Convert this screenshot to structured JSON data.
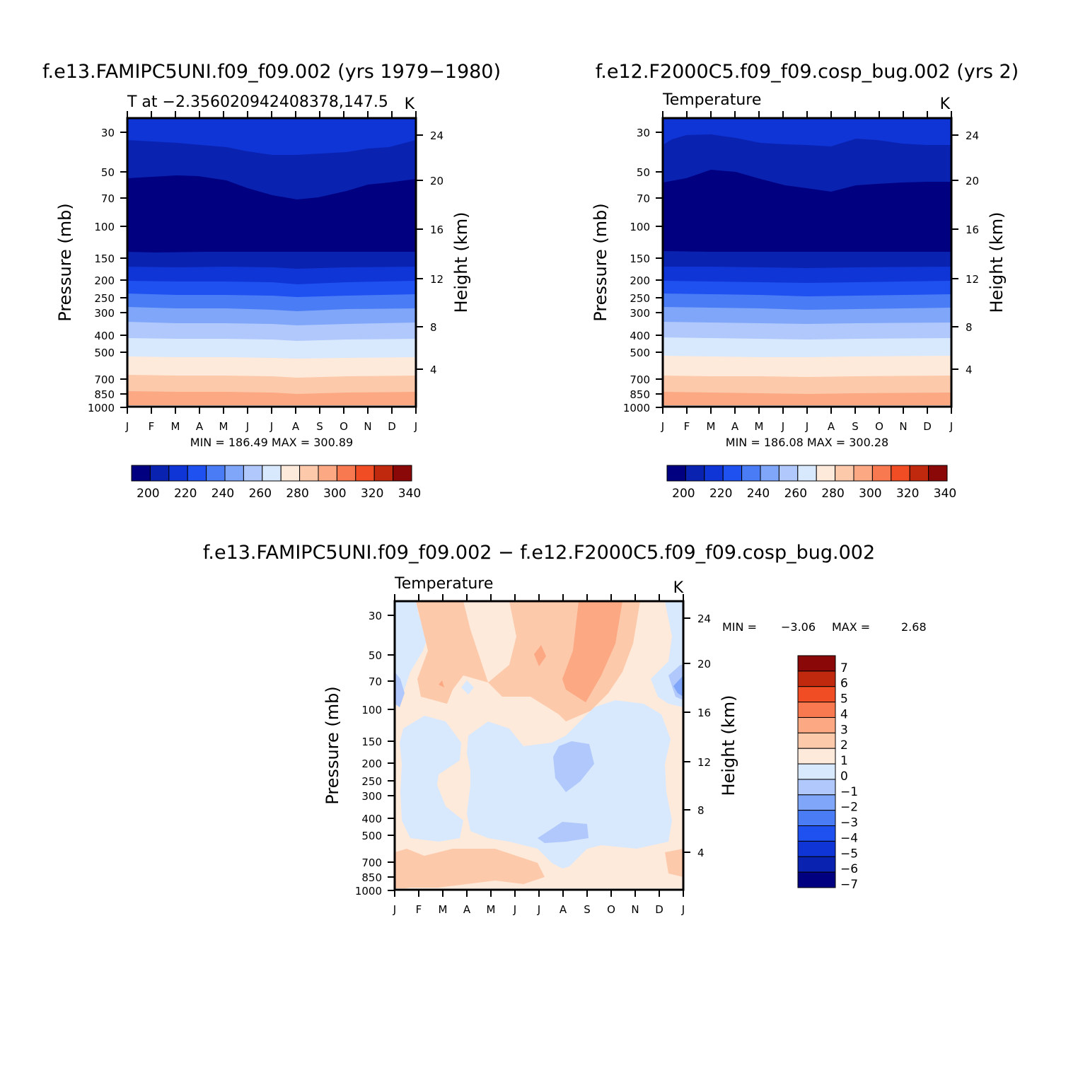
{
  "panels": [
    {
      "title": "f.e13.FAMIPC5UNI.f09_f09.002 (yrs 1979−1980)",
      "left_label": "T at −2.356020942408378,147.5",
      "right_label": "K",
      "stats": "MIN = 186.49 MAX = 300.89"
    },
    {
      "title": "f.e12.F2000C5.f09_f09.cosp_bug.002 (yrs 2)",
      "left_label": "Temperature",
      "right_label": "K",
      "stats": "MIN = 186.08 MAX = 300.28"
    },
    {
      "title": "f.e13.FAMIPC5UNI.f09_f09.002 − f.e12.F2000C5.f09_f09.cosp_bug.002",
      "left_label": "Temperature",
      "right_label": "K",
      "stats_min_label": "MIN =",
      "stats_min": "−3.06",
      "stats_max_label": "MAX =",
      "stats_max": "2.68"
    }
  ],
  "axis": {
    "ylabel_left": "Pressure (mb)",
    "ylabel_right": "Height (km)",
    "months": [
      "J",
      "F",
      "M",
      "A",
      "M",
      "J",
      "J",
      "A",
      "S",
      "O",
      "N",
      "D",
      "J"
    ],
    "pressure_ticks": [
      "30",
      "50",
      "70",
      "100",
      "150",
      "200",
      "250",
      "300",
      "400",
      "500",
      "700",
      "850",
      "1000"
    ],
    "height_ticks": [
      "24",
      "20",
      "16",
      "12",
      "8",
      "4"
    ]
  },
  "colors": {
    "temp_levels": [
      "#000080",
      "#0a22b0",
      "#0f35d6",
      "#1f50f0",
      "#4a7cf5",
      "#7fa6f8",
      "#b0c8fb",
      "#d8e8fd",
      "#feeadb",
      "#fdc9ab",
      "#fba883",
      "#f8794f",
      "#f04d25",
      "#c0290d",
      "#8a0808"
    ],
    "diff_levels": [
      "#000080",
      "#0a22b0",
      "#0f35d6",
      "#1f50f0",
      "#4a7cf5",
      "#7fa6f8",
      "#b0c8fb",
      "#d8e8fd",
      "#feeadb",
      "#fdc9ab",
      "#fba883",
      "#f8794f",
      "#f04d25",
      "#c0290d",
      "#8a0808"
    ]
  },
  "temp_legend_ticks": [
    "200",
    "220",
    "240",
    "260",
    "280",
    "300",
    "320",
    "340"
  ],
  "diff_legend_ticks": [
    "7",
    "6",
    "5",
    "4",
    "3",
    "2",
    "1",
    "0",
    "−1",
    "−2",
    "−3",
    "−4",
    "−5",
    "−6",
    "−7"
  ],
  "chart_data": [
    {
      "type": "heatmap",
      "title": "f.e13.FAMIPC5UNI.f09_f09.002 (yrs 1979−1980)",
      "variable": "T",
      "units": "K",
      "x": [
        "J",
        "F",
        "M",
        "A",
        "M",
        "J",
        "J",
        "A",
        "S",
        "O",
        "N",
        "D",
        "J"
      ],
      "y_pressure_mb": [
        30,
        50,
        70,
        100,
        150,
        200,
        250,
        300,
        400,
        500,
        700,
        850,
        1000
      ],
      "contour_levels": [
        195,
        200,
        210,
        220,
        230,
        240,
        250,
        260,
        270,
        280,
        290,
        300,
        310,
        320,
        330,
        340
      ],
      "min": 186.49,
      "max": 300.89
    },
    {
      "type": "heatmap",
      "title": "f.e12.F2000C5.f09_f09.cosp_bug.002 (yrs 2)",
      "variable": "Temperature",
      "units": "K",
      "x": [
        "J",
        "F",
        "M",
        "A",
        "M",
        "J",
        "J",
        "A",
        "S",
        "O",
        "N",
        "D",
        "J"
      ],
      "y_pressure_mb": [
        30,
        50,
        70,
        100,
        150,
        200,
        250,
        300,
        400,
        500,
        700,
        850,
        1000
      ],
      "contour_levels": [
        195,
        200,
        210,
        220,
        230,
        240,
        250,
        260,
        270,
        280,
        290,
        300,
        310,
        320,
        330,
        340
      ],
      "min": 186.08,
      "max": 300.28
    },
    {
      "type": "heatmap",
      "title": "f.e13.FAMIPC5UNI.f09_f09.002 − f.e12.F2000C5.f09_f09.cosp_bug.002",
      "variable": "Temperature",
      "units": "K",
      "x": [
        "J",
        "F",
        "M",
        "A",
        "M",
        "J",
        "J",
        "A",
        "S",
        "O",
        "N",
        "D",
        "J"
      ],
      "y_pressure_mb": [
        30,
        50,
        70,
        100,
        150,
        200,
        250,
        300,
        400,
        500,
        700,
        850,
        1000
      ],
      "contour_levels": [
        -7,
        -6,
        -5,
        -4,
        -3,
        -2,
        -1,
        0,
        1,
        2,
        3,
        4,
        5,
        6,
        7
      ],
      "min": -3.06,
      "max": 2.68
    }
  ]
}
